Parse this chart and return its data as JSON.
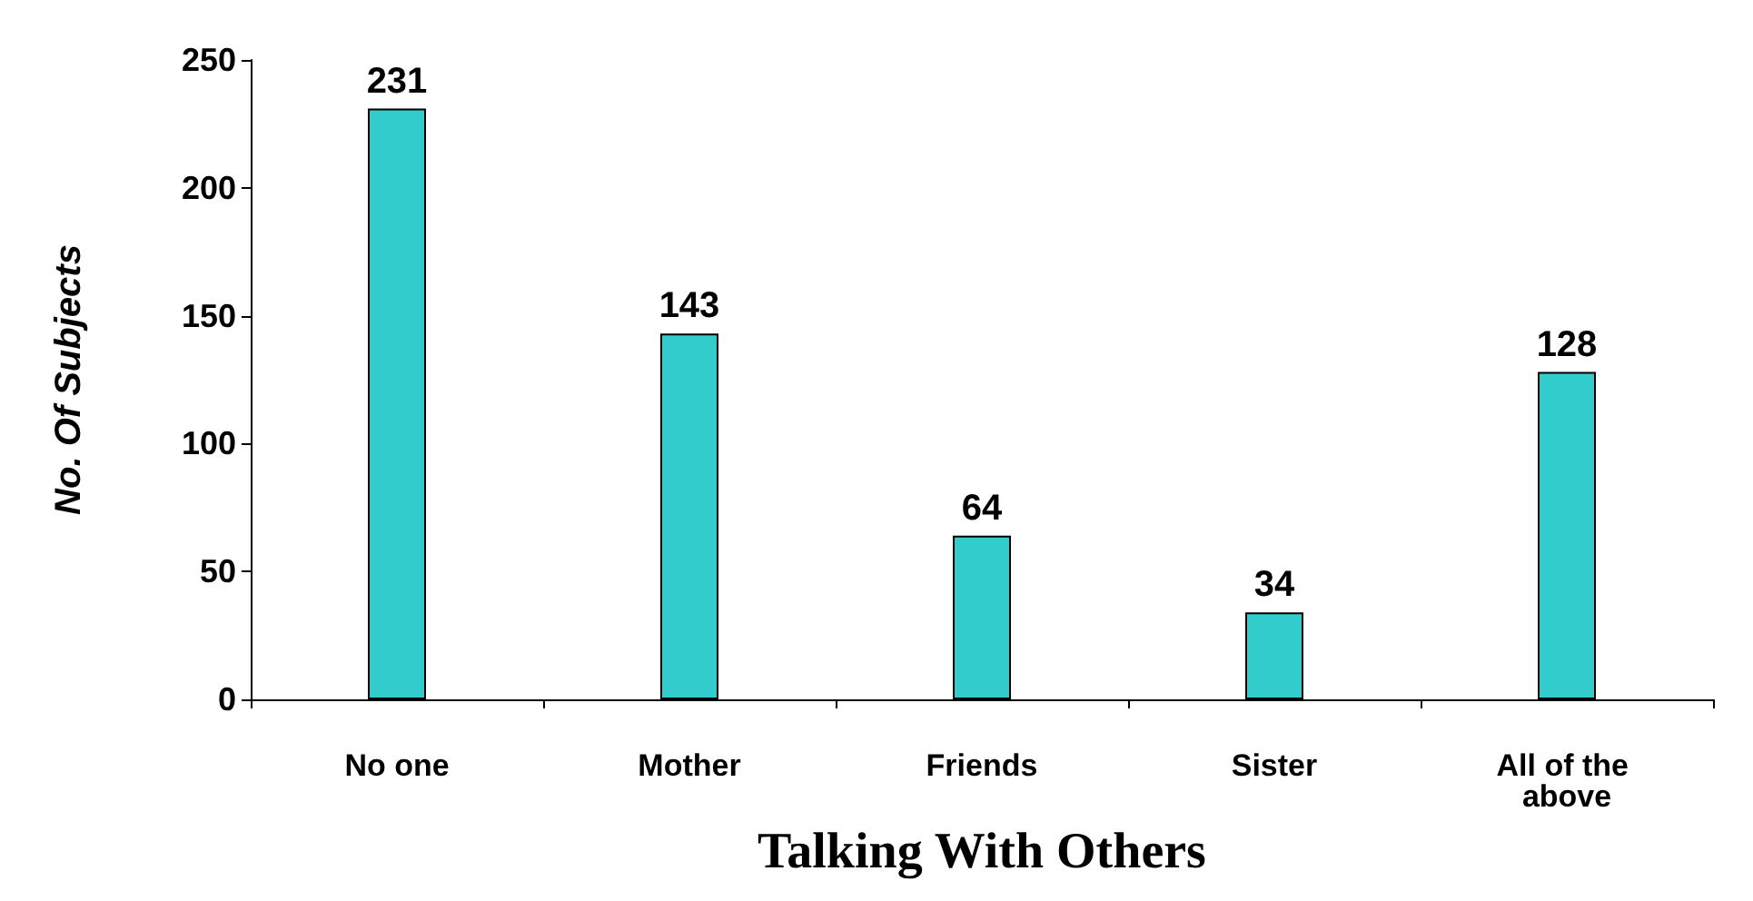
{
  "chart_data": {
    "type": "bar",
    "xlabel": "Talking With Others",
    "ylabel": "No. Of Subjects",
    "categories": [
      "No one",
      "Mother",
      "Friends",
      "Sister",
      "All of the above"
    ],
    "values": [
      231,
      143,
      64,
      34,
      128
    ],
    "color": "#33cccc",
    "ylim": [
      0,
      250
    ],
    "yticks": [
      0,
      50,
      100,
      150,
      200,
      250
    ],
    "grid": false,
    "data_labels": true
  }
}
